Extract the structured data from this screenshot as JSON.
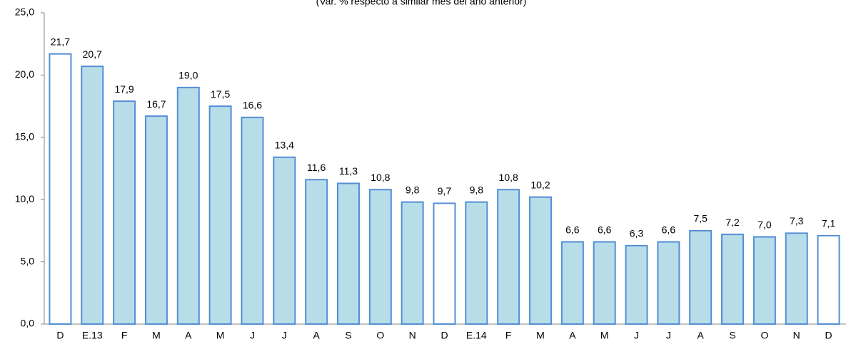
{
  "chart_data": {
    "type": "bar",
    "subtitle": "(Var. % respecto a similar mes del año anterior)",
    "categories": [
      "D",
      "E.13",
      "F",
      "M",
      "A",
      "M",
      "J",
      "J",
      "A",
      "S",
      "O",
      "N",
      "D",
      "E.14",
      "F",
      "M",
      "A",
      "M",
      "J",
      "J",
      "A",
      "S",
      "O",
      "N",
      "D"
    ],
    "values": [
      21.7,
      20.7,
      17.9,
      16.7,
      19.0,
      17.5,
      16.6,
      13.4,
      11.6,
      11.3,
      10.8,
      9.8,
      9.7,
      9.8,
      10.8,
      10.2,
      6.6,
      6.6,
      6.3,
      6.6,
      7.5,
      7.2,
      7.0,
      7.3,
      7.1
    ],
    "value_labels": [
      "21,7",
      "20,7",
      "17,9",
      "16,7",
      "19,0",
      "17,5",
      "16,6",
      "13,4",
      "11,6",
      "11,3",
      "10,8",
      "9,8",
      "9,7",
      "9,8",
      "10,8",
      "10,2",
      "6,6",
      "6,6",
      "6,3",
      "6,6",
      "7,5",
      "7,2",
      "7,0",
      "7,3",
      "7,1"
    ],
    "colors": [
      "#ffffff",
      "#b7dde8",
      "#b7dde8",
      "#b7dde8",
      "#b7dde8",
      "#b7dde8",
      "#b7dde8",
      "#b7dde8",
      "#b7dde8",
      "#b7dde8",
      "#b7dde8",
      "#b7dde8",
      "#ffffff",
      "#b7dde8",
      "#b7dde8",
      "#b7dde8",
      "#b7dde8",
      "#b7dde8",
      "#b7dde8",
      "#b7dde8",
      "#b7dde8",
      "#b7dde8",
      "#b7dde8",
      "#b7dde8",
      "#ffffff"
    ],
    "edge_color": "#558ed5",
    "ylim": [
      0,
      25
    ],
    "yticks": [
      {
        "value": 0,
        "label": "0,0"
      },
      {
        "value": 5,
        "label": "5,0"
      },
      {
        "value": 10,
        "label": "10,0"
      },
      {
        "value": 15,
        "label": "15,0"
      },
      {
        "value": 20,
        "label": "20,0"
      },
      {
        "value": 25,
        "label": "25,0"
      }
    ]
  }
}
